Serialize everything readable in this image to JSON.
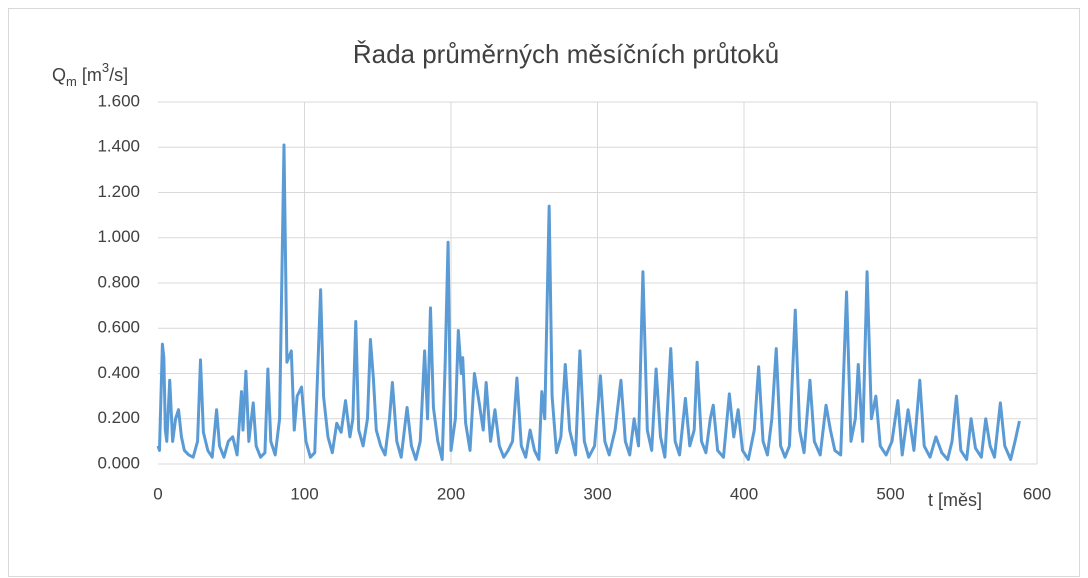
{
  "chart_data": {
    "type": "line",
    "title": "Řada průměrných měsíčních průtoků",
    "y_label": [
      "Q",
      "m",
      " [m",
      "3",
      "/s]"
    ],
    "x_label": "t [měs]",
    "color": "#5b9bd5",
    "grid": true,
    "xlim": [
      0,
      600
    ],
    "xticks": [
      0,
      100,
      200,
      300,
      400,
      500,
      600
    ],
    "ylim": [
      0,
      1.6
    ],
    "yticks": [
      {
        "value": 0,
        "label": "0.000"
      },
      {
        "value": 0.2,
        "label": "0.200"
      },
      {
        "value": 0.4,
        "label": "0.400"
      },
      {
        "value": 0.6,
        "label": "0.600"
      },
      {
        "value": 0.8,
        "label": "0.800"
      },
      {
        "value": 1.0,
        "label": "1.000"
      },
      {
        "value": 1.2,
        "label": "1.200"
      },
      {
        "value": 1.4,
        "label": "1.400"
      },
      {
        "value": 1.6,
        "label": "1.600"
      }
    ],
    "x": [
      0,
      1,
      3,
      4,
      5,
      6,
      8,
      10,
      12,
      14,
      16,
      18,
      21,
      24,
      27,
      29,
      31,
      34,
      37,
      40,
      42,
      45,
      48,
      51,
      54,
      57,
      58,
      60,
      62,
      65,
      67,
      70,
      73,
      75,
      77,
      80,
      83,
      86,
      88,
      91,
      93,
      95,
      98,
      101,
      104,
      107,
      111,
      113,
      116,
      119,
      122,
      125,
      128,
      131,
      133,
      135,
      137,
      140,
      143,
      145,
      147,
      149,
      152,
      155,
      158,
      160,
      163,
      166,
      170,
      173,
      176,
      179,
      182,
      184,
      186,
      188,
      191,
      194,
      196,
      198,
      200,
      203,
      205,
      207,
      208,
      210,
      213,
      216,
      219,
      222,
      224,
      227,
      230,
      233,
      236,
      239,
      242,
      245,
      248,
      251,
      254,
      257,
      260,
      262,
      264,
      267,
      269,
      272,
      275,
      278,
      281,
      285,
      288,
      291,
      294,
      298,
      302,
      305,
      308,
      312,
      316,
      319,
      322,
      325,
      328,
      331,
      334,
      337,
      340,
      343,
      346,
      350,
      353,
      356,
      360,
      363,
      366,
      368,
      371,
      374,
      377,
      379,
      382,
      386,
      390,
      393,
      396,
      399,
      403,
      407,
      410,
      413,
      416,
      419,
      422,
      425,
      428,
      431,
      435,
      438,
      441,
      445,
      448,
      452,
      456,
      459,
      462,
      466,
      470,
      473,
      476,
      478,
      481,
      484,
      487,
      490,
      493,
      497,
      501,
      505,
      508,
      512,
      516,
      520,
      523,
      527,
      531,
      535,
      539,
      542,
      545,
      548,
      552,
      555,
      558,
      562,
      565,
      568,
      571,
      575,
      578,
      582,
      585,
      588
    ],
    "values": [
      0.08,
      0.06,
      0.53,
      0.47,
      0.15,
      0.1,
      0.37,
      0.1,
      0.2,
      0.24,
      0.12,
      0.06,
      0.04,
      0.03,
      0.1,
      0.46,
      0.14,
      0.06,
      0.03,
      0.24,
      0.08,
      0.03,
      0.1,
      0.12,
      0.04,
      0.32,
      0.15,
      0.41,
      0.1,
      0.27,
      0.08,
      0.03,
      0.05,
      0.42,
      0.1,
      0.04,
      0.2,
      1.41,
      0.45,
      0.5,
      0.15,
      0.3,
      0.34,
      0.1,
      0.03,
      0.05,
      0.77,
      0.3,
      0.12,
      0.05,
      0.18,
      0.14,
      0.28,
      0.12,
      0.2,
      0.63,
      0.15,
      0.08,
      0.2,
      0.55,
      0.38,
      0.15,
      0.08,
      0.04,
      0.2,
      0.36,
      0.1,
      0.03,
      0.25,
      0.08,
      0.02,
      0.1,
      0.5,
      0.2,
      0.69,
      0.25,
      0.1,
      0.02,
      0.44,
      0.98,
      0.06,
      0.2,
      0.59,
      0.4,
      0.47,
      0.18,
      0.06,
      0.4,
      0.28,
      0.15,
      0.36,
      0.1,
      0.24,
      0.08,
      0.03,
      0.06,
      0.1,
      0.38,
      0.08,
      0.03,
      0.15,
      0.06,
      0.02,
      0.32,
      0.2,
      1.14,
      0.3,
      0.05,
      0.12,
      0.44,
      0.15,
      0.04,
      0.5,
      0.1,
      0.03,
      0.08,
      0.39,
      0.1,
      0.04,
      0.15,
      0.37,
      0.1,
      0.04,
      0.2,
      0.08,
      0.85,
      0.15,
      0.06,
      0.42,
      0.12,
      0.03,
      0.51,
      0.1,
      0.04,
      0.29,
      0.08,
      0.15,
      0.45,
      0.1,
      0.05,
      0.2,
      0.26,
      0.06,
      0.03,
      0.31,
      0.12,
      0.24,
      0.06,
      0.02,
      0.15,
      0.43,
      0.1,
      0.04,
      0.2,
      0.51,
      0.08,
      0.03,
      0.08,
      0.68,
      0.15,
      0.05,
      0.37,
      0.1,
      0.04,
      0.26,
      0.15,
      0.06,
      0.04,
      0.76,
      0.1,
      0.2,
      0.44,
      0.1,
      0.85,
      0.2,
      0.3,
      0.08,
      0.04,
      0.1,
      0.28,
      0.04,
      0.24,
      0.06,
      0.37,
      0.08,
      0.03,
      0.12,
      0.05,
      0.02,
      0.1,
      0.3,
      0.06,
      0.02,
      0.2,
      0.07,
      0.03,
      0.2,
      0.08,
      0.03,
      0.27,
      0.08,
      0.02,
      0.1,
      0.19
    ]
  }
}
